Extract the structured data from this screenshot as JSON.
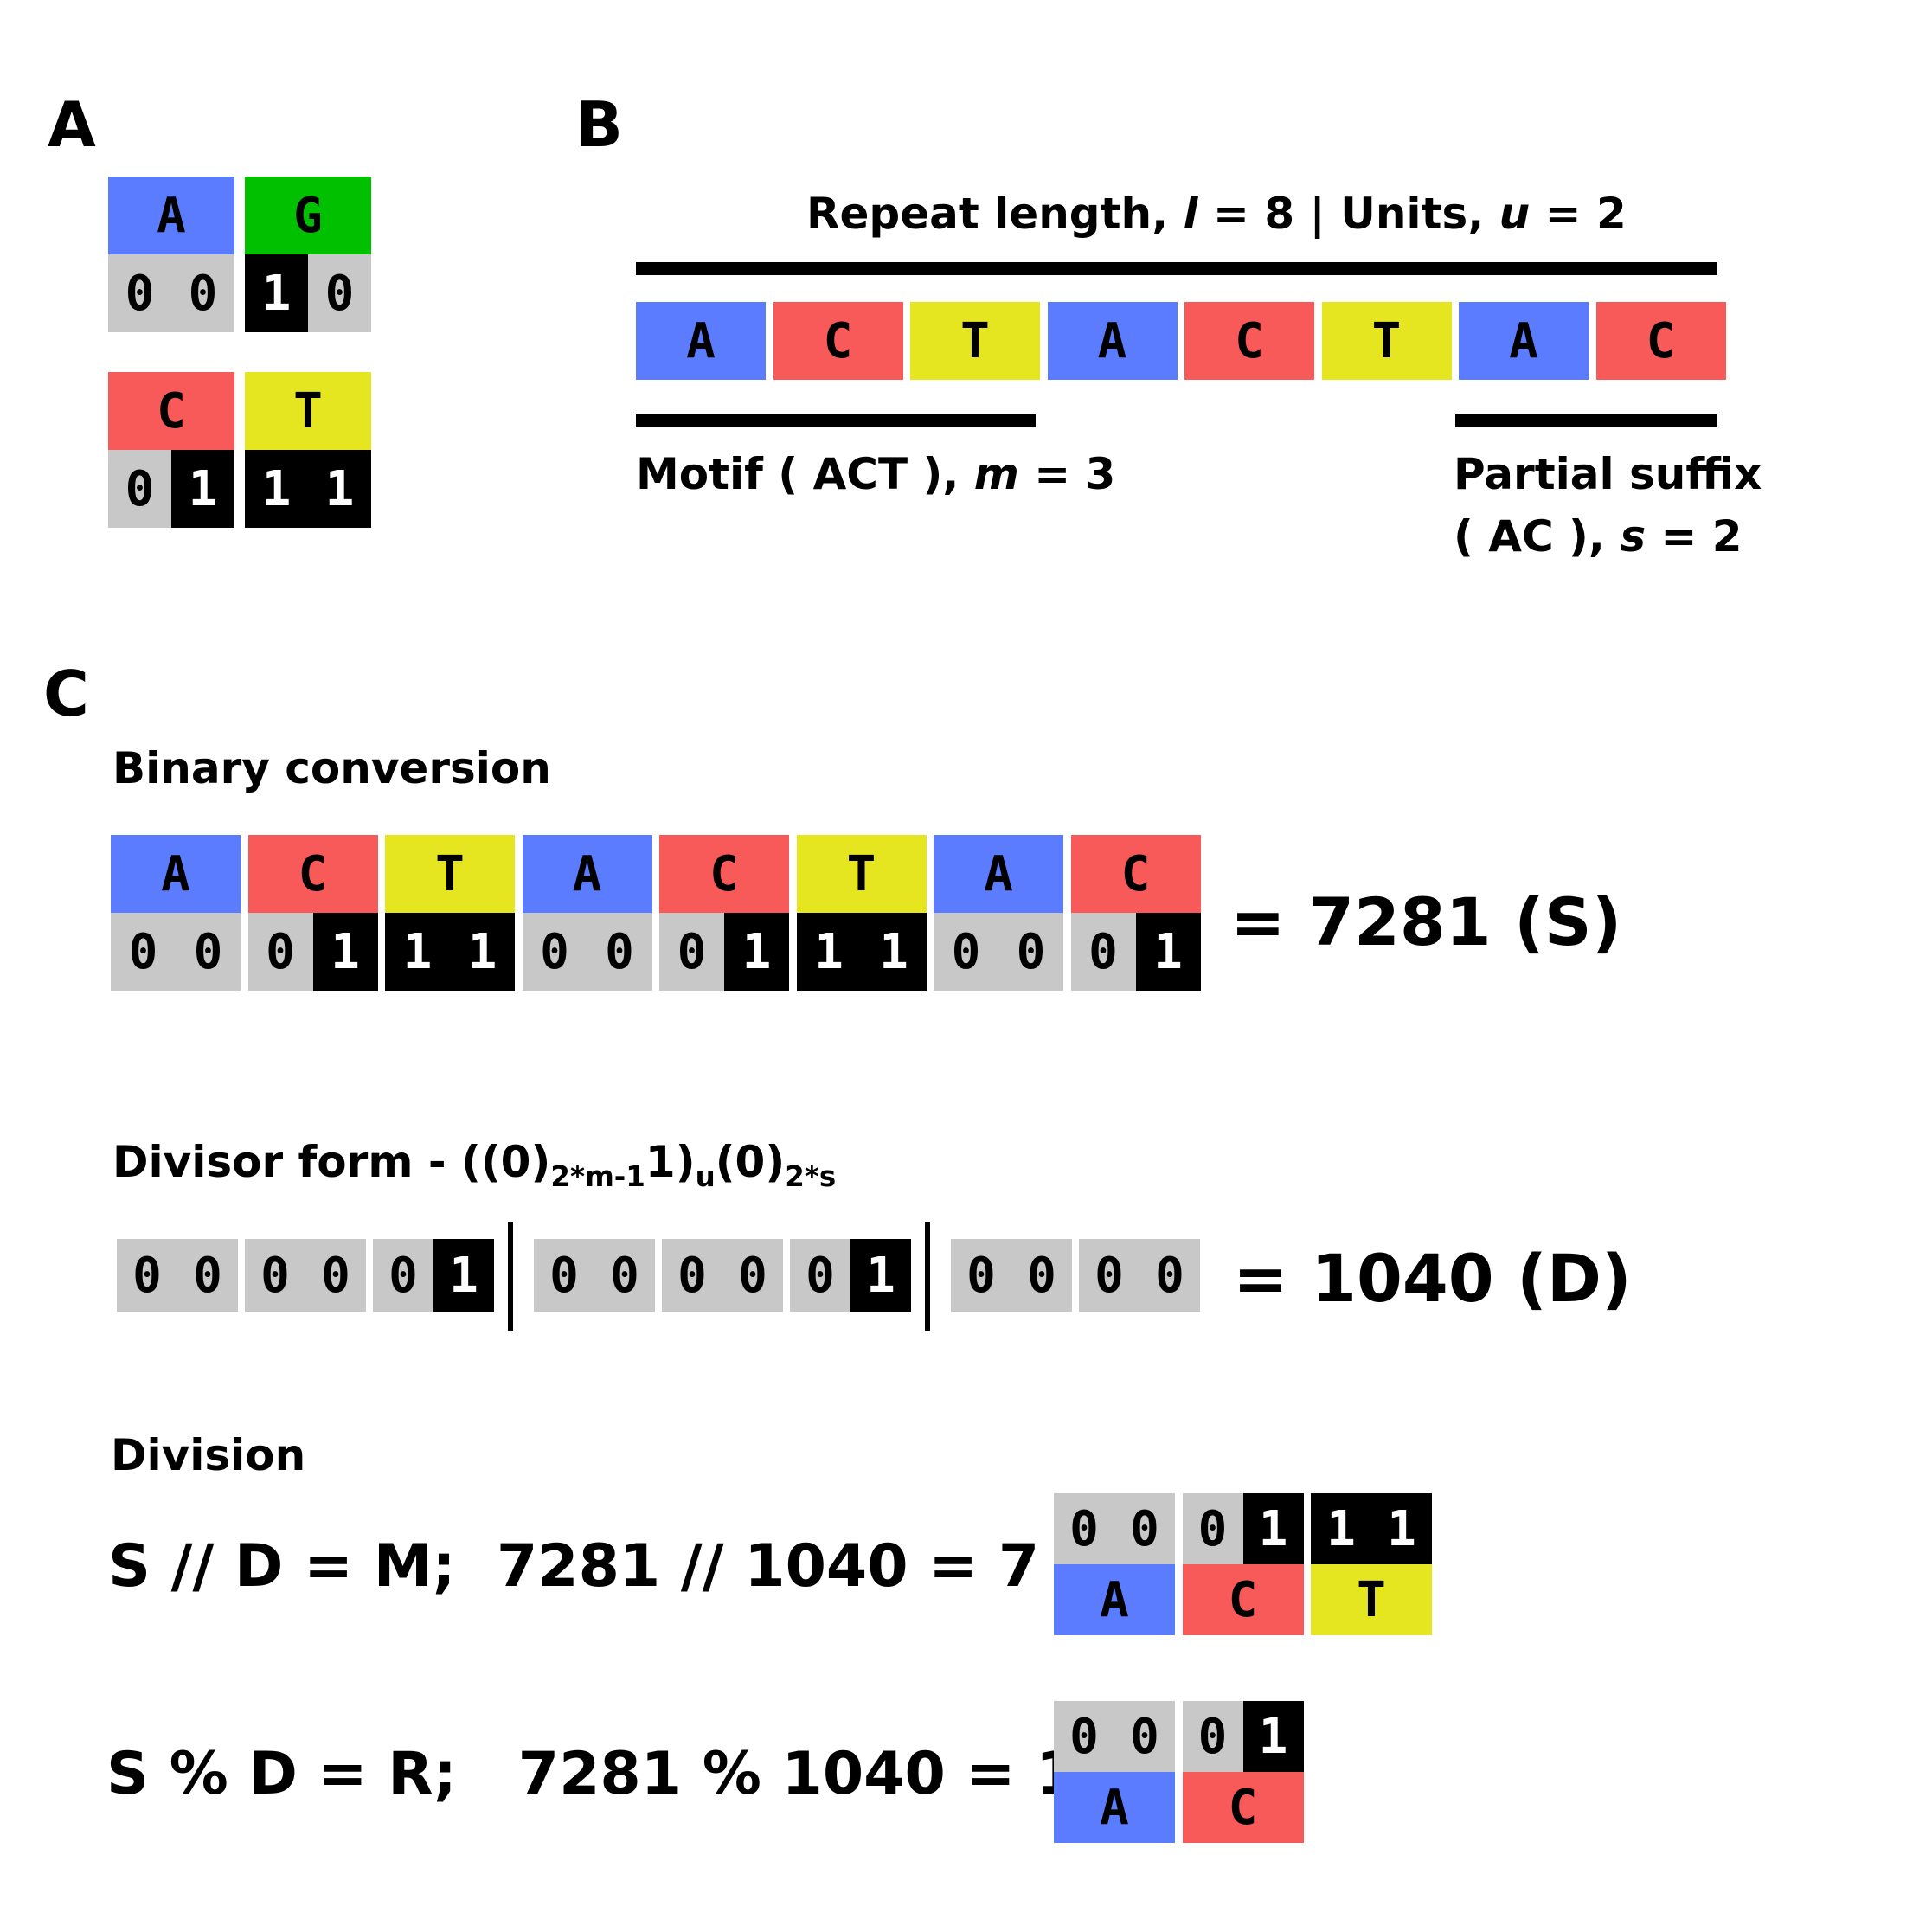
{
  "colors": {
    "A": "#5b7cff",
    "G": "#00c000",
    "C": "#f75a58",
    "T": "#e6e620",
    "bit_bg": "#c8c8c8",
    "bit_one_bg": "#000000"
  },
  "panel_a": {
    "label": "A",
    "bases": [
      {
        "base": "A",
        "bits": [
          "0",
          "0"
        ]
      },
      {
        "base": "G",
        "bits": [
          "1",
          "0"
        ]
      },
      {
        "base": "C",
        "bits": [
          "0",
          "1"
        ]
      },
      {
        "base": "T",
        "bits": [
          "1",
          "1"
        ]
      }
    ]
  },
  "panel_b": {
    "label": "B",
    "title_parts": [
      "Repeat length, ",
      "l",
      " = 8 | Units, ",
      "u",
      " = 2"
    ],
    "sequence": [
      "A",
      "C",
      "T",
      "A",
      "C",
      "T",
      "A",
      "C"
    ],
    "motif_parts": [
      "Motif ( ACT ), ",
      "m",
      " = 3"
    ],
    "suffix_line1": "Partial suffix",
    "suffix_parts": [
      "( AC ), ",
      "s",
      " = 2"
    ]
  },
  "panel_c": {
    "label": "C",
    "binary_title": "Binary conversion",
    "sequence": [
      "A",
      "C",
      "T",
      "A",
      "C",
      "T",
      "A",
      "C"
    ],
    "sequence_bits": [
      [
        "0",
        "0"
      ],
      [
        "0",
        "1"
      ],
      [
        "1",
        "1"
      ],
      [
        "0",
        "0"
      ],
      [
        "0",
        "1"
      ],
      [
        "1",
        "1"
      ],
      [
        "0",
        "0"
      ],
      [
        "0",
        "1"
      ]
    ],
    "binary_result": "= 7281 (S)",
    "divisor_title": "Divisor form - ((0)",
    "divisor_sub1": "2*m-1",
    "divisor_mid1": "1)",
    "divisor_sub2": "u",
    "divisor_mid2": "(0)",
    "divisor_sub3": "2*s",
    "divisor_groups": [
      [
        [
          "0",
          "0"
        ],
        [
          "0",
          "0"
        ],
        [
          "0",
          "1"
        ]
      ],
      [
        [
          "0",
          "0"
        ],
        [
          "0",
          "0"
        ],
        [
          "0",
          "1"
        ]
      ],
      [
        [
          "0",
          "0"
        ],
        [
          "0",
          "0"
        ]
      ]
    ],
    "divisor_result": "= 1040 (D)",
    "division_title": "Division",
    "quotient_eq": "S // D = M;  7281 // 1040 = 7 =",
    "quotient_bits": [
      [
        "0",
        "0"
      ],
      [
        "0",
        "1"
      ],
      [
        "1",
        "1"
      ]
    ],
    "quotient_bases": [
      "A",
      "C",
      "T"
    ],
    "remainder_eq": "S % D = R;   7281 % 1040 = 1  =",
    "remainder_bits": [
      [
        "0",
        "0"
      ],
      [
        "0",
        "1"
      ]
    ],
    "remainder_bases": [
      "A",
      "C"
    ]
  }
}
